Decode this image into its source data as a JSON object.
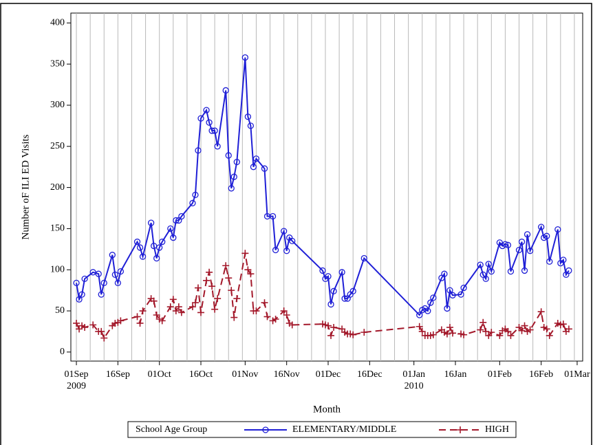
{
  "chart_data": {
    "type": "line",
    "x_label": "Month",
    "y_label": "Number oF ILI ED Visits",
    "legend_title": "School Age Group",
    "legend": "bottom",
    "xlim": [
      "2009-08-30",
      "2010-03-03"
    ],
    "xticks": [
      {
        "value": "2009-09-01",
        "label": "01Sep 2009"
      },
      {
        "value": "2009-09-16",
        "label": "16Sep"
      },
      {
        "value": "2009-10-01",
        "label": "01Oct"
      },
      {
        "value": "2009-10-16",
        "label": "16Oct"
      },
      {
        "value": "2009-11-01",
        "label": "01Nov"
      },
      {
        "value": "2009-11-16",
        "label": "16Nov"
      },
      {
        "value": "2009-12-01",
        "label": "01Dec"
      },
      {
        "value": "2009-12-16",
        "label": "16Dec"
      },
      {
        "value": "2010-01-01",
        "label": "01Jan 2010"
      },
      {
        "value": "2010-01-16",
        "label": "16Jan"
      },
      {
        "value": "2010-02-01",
        "label": "01Feb"
      },
      {
        "value": "2010-02-16",
        "label": "16Feb"
      },
      {
        "value": "2010-03-01",
        "label": "01Mar"
      }
    ],
    "xgrid_step_days": 5,
    "ylim": [
      -11,
      412
    ],
    "yticks": [
      0,
      50,
      100,
      150,
      200,
      250,
      300,
      350,
      400
    ],
    "x": [
      "2009-09-01",
      "2009-09-02",
      "2009-09-03",
      "2009-09-04",
      "2009-09-07",
      "2009-09-09",
      "2009-09-10",
      "2009-09-11",
      "2009-09-14",
      "2009-09-15",
      "2009-09-16",
      "2009-09-17",
      "2009-09-23",
      "2009-09-24",
      "2009-09-25",
      "2009-09-28",
      "2009-09-29",
      "2009-09-30",
      "2009-10-01",
      "2009-10-02",
      "2009-10-05",
      "2009-10-06",
      "2009-10-07",
      "2009-10-08",
      "2009-10-09",
      "2009-10-13",
      "2009-10-14",
      "2009-10-15",
      "2009-10-16",
      "2009-10-18",
      "2009-10-19",
      "2009-10-20",
      "2009-10-21",
      "2009-10-22",
      "2009-10-25",
      "2009-10-26",
      "2009-10-27",
      "2009-10-28",
      "2009-10-29",
      "2009-11-01",
      "2009-11-02",
      "2009-11-03",
      "2009-11-04",
      "2009-11-05",
      "2009-11-08",
      "2009-11-09",
      "2009-11-11",
      "2009-11-12",
      "2009-11-15",
      "2009-11-16",
      "2009-11-17",
      "2009-11-18",
      "2009-11-29",
      "2009-11-30",
      "2009-12-01",
      "2009-12-02",
      "2009-12-03",
      "2009-12-06",
      "2009-12-07",
      "2009-12-08",
      "2009-12-09",
      "2009-12-10",
      "2009-12-14",
      "2010-01-03",
      "2010-01-04",
      "2010-01-05",
      "2010-01-06",
      "2010-01-07",
      "2010-01-08",
      "2010-01-11",
      "2010-01-12",
      "2010-01-13",
      "2010-01-14",
      "2010-01-15",
      "2010-01-18",
      "2010-01-19",
      "2010-01-25",
      "2010-01-26",
      "2010-01-27",
      "2010-01-28",
      "2010-01-29",
      "2010-02-01",
      "2010-02-02",
      "2010-02-03",
      "2010-02-04",
      "2010-02-05",
      "2010-02-08",
      "2010-02-09",
      "2010-02-10",
      "2010-02-11",
      "2010-02-12",
      "2010-02-16",
      "2010-02-17",
      "2010-02-18",
      "2010-02-19",
      "2010-02-22",
      "2010-02-23",
      "2010-02-24",
      "2010-02-25",
      "2010-02-26"
    ],
    "series": [
      {
        "name": "ELEMENTARY/MIDDLE",
        "color": "#1f1fd6",
        "marker": "circle",
        "dashed": false,
        "values": [
          84,
          64,
          70,
          89,
          97,
          95,
          70,
          84,
          118,
          94,
          84,
          98,
          134,
          127,
          116,
          157,
          129,
          114,
          127,
          134,
          150,
          139,
          160,
          160,
          165,
          181,
          191,
          245,
          284,
          294,
          279,
          269,
          269,
          250,
          318,
          239,
          199,
          213,
          231,
          358,
          286,
          275,
          225,
          235,
          223,
          165,
          165,
          124,
          147,
          123,
          139,
          135,
          99,
          89,
          92,
          58,
          74,
          97,
          65,
          65,
          70,
          74,
          114,
          45,
          51,
          53,
          50,
          60,
          66,
          90,
          95,
          53,
          75,
          69,
          70,
          78,
          106,
          94,
          89,
          107,
          98,
          133,
          129,
          131,
          130,
          98,
          124,
          134,
          99,
          143,
          123,
          152,
          139,
          141,
          110,
          149,
          108,
          112,
          94,
          99
        ]
      },
      {
        "name": "HIGH",
        "color": "#a3182a",
        "marker": "plus",
        "dashed": true,
        "values": [
          35,
          28,
          32,
          30,
          33,
          25,
          25,
          17,
          32,
          35,
          36,
          38,
          43,
          35,
          50,
          65,
          62,
          45,
          40,
          38,
          55,
          64,
          50,
          55,
          48,
          55,
          60,
          78,
          48,
          87,
          97,
          80,
          52,
          65,
          105,
          90,
          75,
          42,
          65,
          120,
          100,
          95,
          50,
          50,
          60,
          43,
          38,
          40,
          50,
          45,
          35,
          33,
          34,
          33,
          32,
          20,
          30,
          28,
          24,
          22,
          22,
          21,
          24,
          31,
          25,
          20,
          20,
          20,
          21,
          27,
          24,
          22,
          30,
          23,
          22,
          21,
          27,
          36,
          25,
          20,
          24,
          20,
          26,
          28,
          25,
          20,
          30,
          26,
          32,
          25,
          27,
          49,
          30,
          28,
          20,
          35,
          33,
          34,
          25,
          28
        ]
      }
    ]
  }
}
